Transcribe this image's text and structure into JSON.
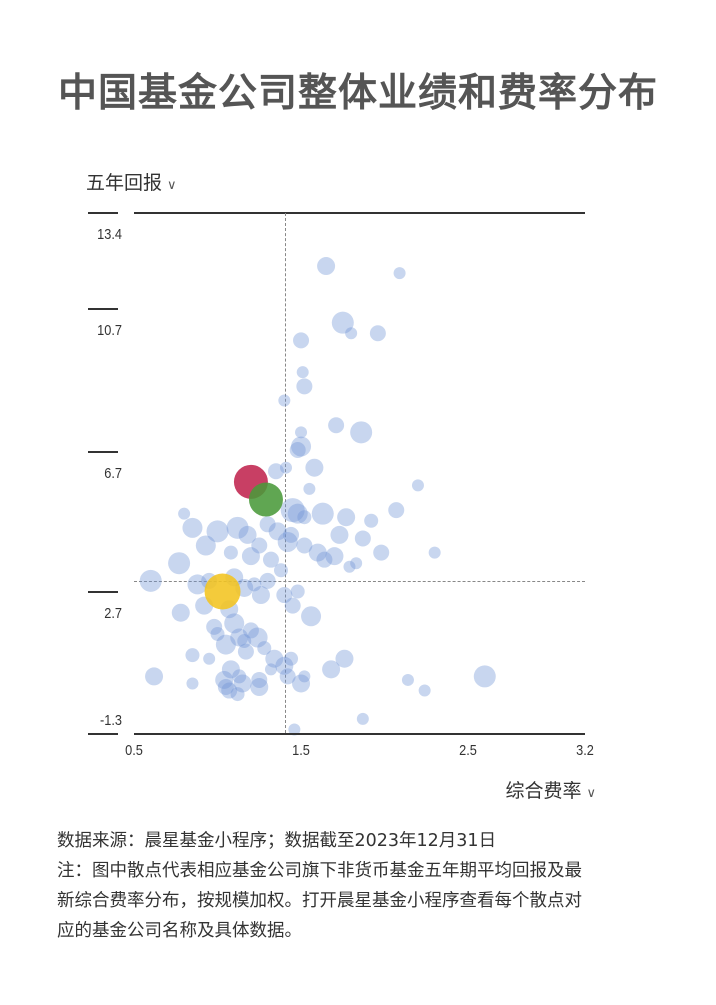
{
  "title": "中国基金公司整体业绩和费率分布",
  "y_axis": {
    "label": "五年回报",
    "chevron": "∨"
  },
  "x_axis": {
    "label": "综合费率",
    "chevron": "∨"
  },
  "notes": {
    "source": "数据来源：晨星基金小程序；数据截至2023年12月31日",
    "note_line1": "注：图中散点代表相应基金公司旗下非货币基金五年期平均回报及最",
    "note_line2": "新综合费率分布，按规模加权。打开晨星基金小程序查看每个散点对",
    "note_line3": "应的基金公司名称及具体数据。"
  },
  "colors": {
    "bubble": "#6f93d6",
    "highlight_red": "#c0244f",
    "highlight_green": "#4a9a3a",
    "highlight_yellow": "#f2c420"
  },
  "chart_data": {
    "type": "scatter",
    "title": "中国基金公司整体业绩和费率分布",
    "xlabel": "综合费率",
    "ylabel": "五年回报",
    "xlim": [
      0.5,
      3.2
    ],
    "ylim": [
      -1.3,
      13.4
    ],
    "x_ticks": [
      "0.5",
      "1.5",
      "2.5",
      "3.2"
    ],
    "y_ticks": [
      "13.4",
      "10.7",
      "6.7",
      "2.7",
      "-1.3"
    ],
    "reference_lines": {
      "x": 1.41,
      "y": 3.0
    },
    "grid": false,
    "legend": null,
    "highlighted": [
      {
        "x": 1.2,
        "y": 5.8,
        "r": 17,
        "color": "red"
      },
      {
        "x": 1.29,
        "y": 5.3,
        "r": 17,
        "color": "green"
      },
      {
        "x": 1.03,
        "y": 2.7,
        "r": 18,
        "color": "yellow"
      }
    ],
    "points": [
      [
        1.65,
        11.9,
        9
      ],
      [
        2.09,
        11.7,
        6
      ],
      [
        1.75,
        10.3,
        11
      ],
      [
        1.8,
        10.0,
        6
      ],
      [
        1.96,
        10.0,
        8
      ],
      [
        1.5,
        9.8,
        8
      ],
      [
        1.51,
        8.9,
        6
      ],
      [
        1.52,
        8.5,
        8
      ],
      [
        1.4,
        8.1,
        6
      ],
      [
        1.71,
        7.4,
        8
      ],
      [
        1.86,
        7.2,
        11
      ],
      [
        1.5,
        7.2,
        6
      ],
      [
        1.5,
        6.8,
        10
      ],
      [
        1.48,
        6.7,
        8
      ],
      [
        1.58,
        6.2,
        9
      ],
      [
        1.35,
        6.1,
        8
      ],
      [
        1.55,
        5.6,
        6
      ],
      [
        1.41,
        6.2,
        6
      ],
      [
        2.2,
        5.7,
        6
      ],
      [
        0.8,
        4.9,
        6
      ],
      [
        1.45,
        5.0,
        12
      ],
      [
        1.48,
        4.9,
        10
      ],
      [
        1.52,
        4.8,
        7
      ],
      [
        1.63,
        4.9,
        11
      ],
      [
        1.77,
        4.8,
        9
      ],
      [
        1.92,
        4.7,
        7
      ],
      [
        2.07,
        5.0,
        8
      ],
      [
        1.87,
        4.2,
        8
      ],
      [
        1.73,
        4.3,
        9
      ],
      [
        1.98,
        3.8,
        8
      ],
      [
        1.83,
        3.5,
        6
      ],
      [
        1.79,
        3.4,
        6
      ],
      [
        2.3,
        3.8,
        6
      ],
      [
        1.7,
        3.7,
        9
      ],
      [
        1.64,
        3.6,
        8
      ],
      [
        1.6,
        3.8,
        9
      ],
      [
        1.52,
        4.0,
        8
      ],
      [
        1.44,
        4.3,
        8
      ],
      [
        1.42,
        4.1,
        10
      ],
      [
        1.36,
        4.4,
        9
      ],
      [
        1.3,
        4.6,
        8
      ],
      [
        1.25,
        4.0,
        8
      ],
      [
        1.18,
        4.3,
        9
      ],
      [
        1.12,
        4.5,
        11
      ],
      [
        1.0,
        4.4,
        11
      ],
      [
        0.93,
        4.0,
        10
      ],
      [
        0.85,
        4.5,
        10
      ],
      [
        1.08,
        3.8,
        7
      ],
      [
        1.2,
        3.7,
        9
      ],
      [
        1.32,
        3.6,
        8
      ],
      [
        1.38,
        3.3,
        7
      ],
      [
        0.77,
        3.5,
        11
      ],
      [
        0.6,
        3.0,
        11
      ],
      [
        0.88,
        2.9,
        10
      ],
      [
        0.95,
        3.0,
        8
      ],
      [
        1.1,
        3.1,
        9
      ],
      [
        1.16,
        2.8,
        9
      ],
      [
        1.22,
        2.9,
        7
      ],
      [
        1.26,
        2.6,
        9
      ],
      [
        1.3,
        3.0,
        8
      ],
      [
        1.4,
        2.6,
        8
      ],
      [
        1.45,
        2.3,
        8
      ],
      [
        1.48,
        2.7,
        7
      ],
      [
        1.56,
        2.0,
        10
      ],
      [
        0.78,
        2.1,
        9
      ],
      [
        0.92,
        2.3,
        9
      ],
      [
        0.98,
        1.7,
        8
      ],
      [
        1.07,
        2.2,
        9
      ],
      [
        1.1,
        1.8,
        10
      ],
      [
        1.13,
        1.4,
        9
      ],
      [
        1.16,
        1.3,
        7
      ],
      [
        1.2,
        1.6,
        8
      ],
      [
        1.17,
        1.0,
        8
      ],
      [
        1.24,
        1.4,
        10
      ],
      [
        1.28,
        1.1,
        7
      ],
      [
        1.05,
        1.2,
        10
      ],
      [
        1.0,
        1.5,
        7
      ],
      [
        0.85,
        0.9,
        7
      ],
      [
        0.95,
        0.8,
        6
      ],
      [
        1.08,
        0.5,
        9
      ],
      [
        1.13,
        0.3,
        7
      ],
      [
        1.15,
        0.1,
        9
      ],
      [
        0.62,
        0.3,
        9
      ],
      [
        0.85,
        0.1,
        6
      ],
      [
        1.04,
        0.2,
        9
      ],
      [
        1.07,
        -0.1,
        8
      ],
      [
        1.12,
        -0.2,
        7
      ],
      [
        1.25,
        0.0,
        9
      ],
      [
        1.05,
        0.0,
        8
      ],
      [
        1.34,
        0.8,
        9
      ],
      [
        1.4,
        0.6,
        9
      ],
      [
        1.42,
        0.3,
        8
      ],
      [
        1.44,
        0.8,
        7
      ],
      [
        1.5,
        0.1,
        9
      ],
      [
        1.52,
        0.3,
        6
      ],
      [
        1.68,
        0.5,
        9
      ],
      [
        1.76,
        0.8,
        9
      ],
      [
        2.14,
        0.2,
        6
      ],
      [
        2.24,
        -0.1,
        6
      ],
      [
        2.6,
        0.3,
        11
      ],
      [
        1.87,
        -0.9,
        6
      ],
      [
        1.46,
        -1.2,
        6
      ],
      [
        1.25,
        0.2,
        8
      ],
      [
        1.32,
        0.5,
        6
      ]
    ]
  }
}
